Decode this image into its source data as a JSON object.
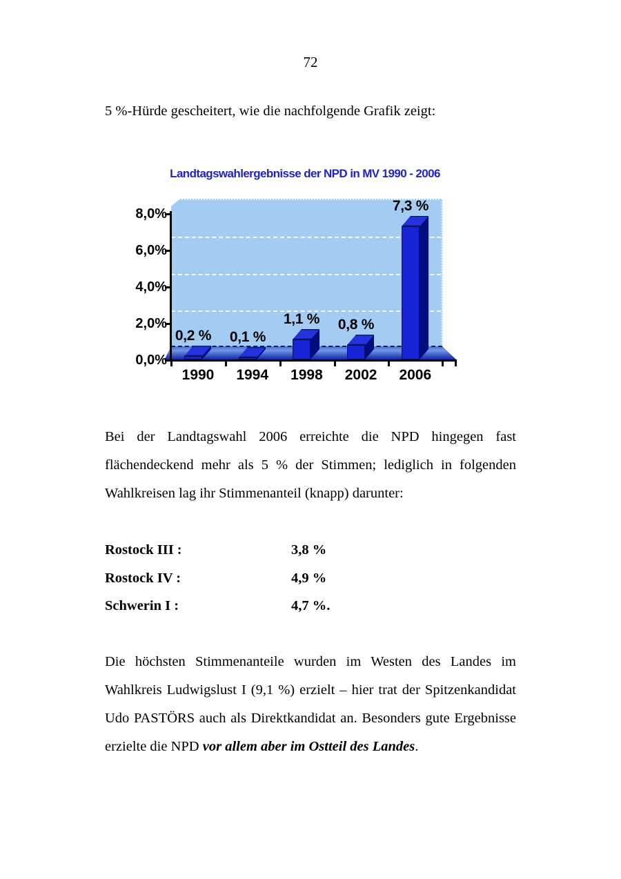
{
  "page": {
    "number": "72",
    "intro_line": "5 %-Hürde gescheitert, wie die nachfolgende Grafik zeigt:"
  },
  "chart": {
    "title": "Landtagswahlergebnisse der NPD in MV 1990 - 2006",
    "colors": {
      "title": "#2122c8",
      "wall": "#a4cbf2",
      "bar_front": "#1525d6",
      "bar_top": "#2433dd",
      "bar_side": "#000d7e",
      "floor_top": "#4a71d0",
      "floor_mid": "#7096e4",
      "floor_dark": "#3050c0",
      "floor_bottom": "#101f96"
    }
  },
  "chart_data": {
    "type": "bar",
    "style": "3d-bar",
    "title": "Landtagswahlergebnisse der NPD in MV 1990 - 2006",
    "categories": [
      "1990",
      "1994",
      "1998",
      "2002",
      "2006"
    ],
    "values": [
      0.2,
      0.1,
      1.1,
      0.8,
      7.3
    ],
    "data_labels": [
      "0,2 %",
      "0,1 %",
      "1,1 %",
      "0,8 %",
      "7,3 %"
    ],
    "y_ticks": [
      "8,0%",
      "6,0%",
      "4,0%",
      "2,0%",
      "0,0%"
    ],
    "xlabel": "",
    "ylabel": "",
    "ylim": [
      0,
      8
    ],
    "grid": true,
    "legend": false
  },
  "paragraphs": {
    "p1": "Bei der Landtagswahl 2006 erreichte die NPD hingegen fast flächendeckend mehr als 5 % der Stimmen; lediglich in folgenden Wahlkreisen lag ihr Stimmenanteil (knapp) darunter:",
    "results": [
      {
        "label": "Rostock III :",
        "value": "3,8 %"
      },
      {
        "label": "Rostock IV :",
        "value": "4,9 %"
      },
      {
        "label": "Schwerin I :",
        "value": "4,7 %."
      }
    ],
    "p2_segments": [
      {
        "text": "Die höchsten Stimmenanteile wurden im Westen des Landes im Wahlkreis Ludwigslust I (9,1 %) erzielt – hier trat der Spitzenkandidat Udo PASTÖRS auch als Direktkandidat an. Besonders gute Ergebnisse erzielte die NPD ",
        "style": "normal"
      },
      {
        "text": "vor allem aber im Ostteil des Landes",
        "style": "bold-italic"
      },
      {
        "text": ".",
        "style": "normal"
      }
    ]
  }
}
